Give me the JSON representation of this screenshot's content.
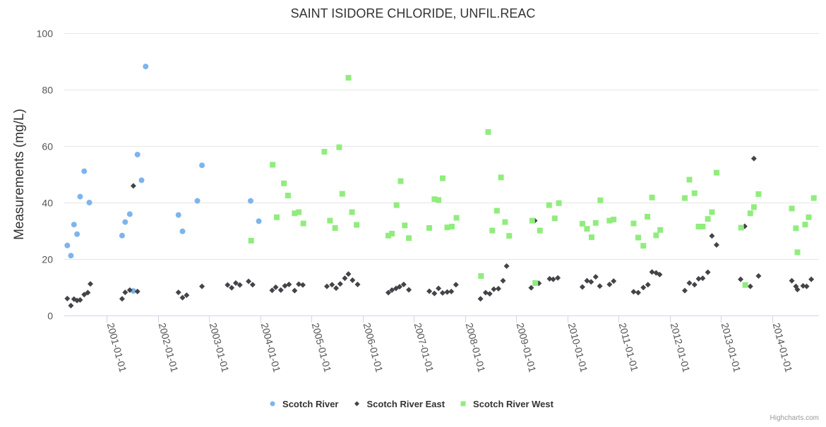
{
  "chart_data": {
    "type": "scatter",
    "title": "SAINT ISIDORE CHLORIDE, UNFIL.REAC",
    "xlabel": "",
    "ylabel": "Measurements (mg/L)",
    "ylim": [
      0,
      100
    ],
    "yticks": [
      0,
      20,
      40,
      60,
      80,
      100
    ],
    "xlim": [
      2000.17,
      2014.91
    ],
    "xticks": [
      {
        "label": "2001-01-01",
        "value": 2001
      },
      {
        "label": "2002-01-01",
        "value": 2002
      },
      {
        "label": "2003-01-01",
        "value": 2003
      },
      {
        "label": "2004-01-01",
        "value": 2004
      },
      {
        "label": "2005-01-01",
        "value": 2005
      },
      {
        "label": "2006-01-01",
        "value": 2006
      },
      {
        "label": "2007-01-01",
        "value": 2007
      },
      {
        "label": "2008-01-01",
        "value": 2008
      },
      {
        "label": "2009-01-01",
        "value": 2009
      },
      {
        "label": "2010-01-01",
        "value": 2010
      },
      {
        "label": "2011-01-01",
        "value": 2011
      },
      {
        "label": "2012-01-01",
        "value": 2012
      },
      {
        "label": "2013-01-01",
        "value": 2013
      },
      {
        "label": "2014-01-01",
        "value": 2014
      }
    ],
    "grid": true,
    "legend_position": "bottom-center",
    "credits": "Highcharts.com",
    "series": [
      {
        "name": "Scotch River",
        "color": "#7cb5ec",
        "marker": "circle",
        "points": [
          [
            2000.23,
            24.8
          ],
          [
            2000.3,
            21.2
          ],
          [
            2000.36,
            32.2
          ],
          [
            2000.42,
            28.8
          ],
          [
            2000.48,
            42.1
          ],
          [
            2000.56,
            51.1
          ],
          [
            2000.66,
            40.0
          ],
          [
            2001.3,
            28.3
          ],
          [
            2001.36,
            33.1
          ],
          [
            2001.45,
            35.9
          ],
          [
            2001.52,
            8.7
          ],
          [
            2001.6,
            57.0
          ],
          [
            2001.68,
            47.9
          ],
          [
            2001.76,
            88.2
          ],
          [
            2002.4,
            35.6
          ],
          [
            2002.48,
            29.8
          ],
          [
            2002.77,
            40.6
          ],
          [
            2002.86,
            53.2
          ],
          [
            2003.81,
            40.6
          ],
          [
            2003.97,
            33.4
          ]
        ]
      },
      {
        "name": "Scotch River East",
        "color": "#434348",
        "marker": "diamond",
        "points": [
          [
            2000.23,
            6.0
          ],
          [
            2000.3,
            3.5
          ],
          [
            2000.36,
            5.8
          ],
          [
            2000.42,
            5.3
          ],
          [
            2000.48,
            5.5
          ],
          [
            2000.56,
            7.4
          ],
          [
            2000.63,
            8.1
          ],
          [
            2000.68,
            11.2
          ],
          [
            2001.3,
            5.9
          ],
          [
            2001.36,
            8.2
          ],
          [
            2001.45,
            9.0
          ],
          [
            2001.52,
            45.9
          ],
          [
            2001.6,
            8.5
          ],
          [
            2002.4,
            8.2
          ],
          [
            2002.48,
            6.3
          ],
          [
            2002.56,
            7.2
          ],
          [
            2002.86,
            10.3
          ],
          [
            2003.36,
            10.8
          ],
          [
            2003.44,
            9.8
          ],
          [
            2003.52,
            11.5
          ],
          [
            2003.6,
            10.8
          ],
          [
            2003.77,
            12.1
          ],
          [
            2003.85,
            10.9
          ],
          [
            2004.23,
            8.9
          ],
          [
            2004.3,
            10.0
          ],
          [
            2004.4,
            9.0
          ],
          [
            2004.48,
            10.5
          ],
          [
            2004.56,
            11.0
          ],
          [
            2004.67,
            8.8
          ],
          [
            2004.75,
            11.1
          ],
          [
            2004.83,
            10.8
          ],
          [
            2005.3,
            10.3
          ],
          [
            2005.4,
            10.9
          ],
          [
            2005.48,
            9.7
          ],
          [
            2005.56,
            11.2
          ],
          [
            2005.65,
            13.2
          ],
          [
            2005.72,
            14.7
          ],
          [
            2005.8,
            12.5
          ],
          [
            2005.9,
            11.0
          ],
          [
            2006.5,
            8.1
          ],
          [
            2006.57,
            9.0
          ],
          [
            2006.65,
            9.6
          ],
          [
            2006.72,
            10.2
          ],
          [
            2006.8,
            11.0
          ],
          [
            2006.9,
            9.1
          ],
          [
            2007.3,
            8.6
          ],
          [
            2007.4,
            7.8
          ],
          [
            2007.48,
            9.6
          ],
          [
            2007.56,
            8.0
          ],
          [
            2007.65,
            8.3
          ],
          [
            2007.73,
            8.5
          ],
          [
            2007.82,
            10.9
          ],
          [
            2008.3,
            5.9
          ],
          [
            2008.4,
            8.1
          ],
          [
            2008.48,
            7.7
          ],
          [
            2008.56,
            9.3
          ],
          [
            2008.65,
            9.5
          ],
          [
            2008.74,
            12.3
          ],
          [
            2008.81,
            17.5
          ],
          [
            2009.29,
            9.8
          ],
          [
            2009.36,
            33.6
          ],
          [
            2009.44,
            11.4
          ],
          [
            2009.65,
            13.0
          ],
          [
            2009.72,
            12.8
          ],
          [
            2009.81,
            13.3
          ],
          [
            2010.29,
            10.1
          ],
          [
            2010.38,
            12.3
          ],
          [
            2010.46,
            11.9
          ],
          [
            2010.55,
            13.7
          ],
          [
            2010.63,
            10.4
          ],
          [
            2010.82,
            11.0
          ],
          [
            2010.9,
            12.2
          ],
          [
            2011.29,
            8.4
          ],
          [
            2011.38,
            8.1
          ],
          [
            2011.48,
            9.9
          ],
          [
            2011.57,
            10.9
          ],
          [
            2011.65,
            15.4
          ],
          [
            2011.73,
            15.1
          ],
          [
            2011.8,
            14.5
          ],
          [
            2012.29,
            8.8
          ],
          [
            2012.38,
            11.5
          ],
          [
            2012.48,
            10.9
          ],
          [
            2012.56,
            13.0
          ],
          [
            2012.64,
            13.2
          ],
          [
            2012.74,
            15.3
          ],
          [
            2012.82,
            28.2
          ],
          [
            2012.91,
            25.0
          ],
          [
            2013.38,
            12.8
          ],
          [
            2013.46,
            31.6
          ],
          [
            2013.57,
            10.3
          ],
          [
            2013.64,
            55.6
          ],
          [
            2013.73,
            14.0
          ],
          [
            2014.38,
            12.3
          ],
          [
            2014.46,
            10.3
          ],
          [
            2014.49,
            9.2
          ],
          [
            2014.6,
            10.5
          ],
          [
            2014.67,
            10.3
          ],
          [
            2014.76,
            12.8
          ]
        ]
      },
      {
        "name": "Scotch River West",
        "color": "#90ed7d",
        "marker": "square",
        "points": [
          [
            2003.82,
            26.5
          ],
          [
            2004.24,
            53.4
          ],
          [
            2004.32,
            34.8
          ],
          [
            2004.46,
            46.8
          ],
          [
            2004.54,
            42.5
          ],
          [
            2004.67,
            36.2
          ],
          [
            2004.75,
            36.6
          ],
          [
            2004.84,
            32.6
          ],
          [
            2005.25,
            58.0
          ],
          [
            2005.36,
            33.6
          ],
          [
            2005.46,
            31.0
          ],
          [
            2005.54,
            59.6
          ],
          [
            2005.6,
            43.1
          ],
          [
            2005.72,
            84.2
          ],
          [
            2005.79,
            36.6
          ],
          [
            2005.88,
            32.1
          ],
          [
            2006.5,
            28.3
          ],
          [
            2006.57,
            29.0
          ],
          [
            2006.66,
            39.1
          ],
          [
            2006.74,
            47.6
          ],
          [
            2006.82,
            31.9
          ],
          [
            2006.9,
            27.4
          ],
          [
            2007.3,
            31.0
          ],
          [
            2007.4,
            41.2
          ],
          [
            2007.48,
            40.9
          ],
          [
            2007.56,
            48.6
          ],
          [
            2007.65,
            31.2
          ],
          [
            2007.74,
            31.5
          ],
          [
            2007.83,
            34.6
          ],
          [
            2008.31,
            14.0
          ],
          [
            2008.45,
            65.0
          ],
          [
            2008.53,
            30.1
          ],
          [
            2008.62,
            37.1
          ],
          [
            2008.7,
            48.9
          ],
          [
            2008.78,
            33.1
          ],
          [
            2008.86,
            28.2
          ],
          [
            2009.31,
            33.6
          ],
          [
            2009.37,
            11.5
          ],
          [
            2009.46,
            30.1
          ],
          [
            2009.64,
            39.1
          ],
          [
            2009.75,
            34.4
          ],
          [
            2009.83,
            39.8
          ],
          [
            2010.29,
            32.5
          ],
          [
            2010.38,
            30.7
          ],
          [
            2010.47,
            27.7
          ],
          [
            2010.55,
            32.8
          ],
          [
            2010.64,
            40.8
          ],
          [
            2010.82,
            33.6
          ],
          [
            2010.9,
            34.0
          ],
          [
            2011.29,
            32.6
          ],
          [
            2011.38,
            27.6
          ],
          [
            2011.48,
            24.7
          ],
          [
            2011.56,
            35.0
          ],
          [
            2011.65,
            41.8
          ],
          [
            2011.73,
            28.4
          ],
          [
            2011.81,
            30.3
          ],
          [
            2012.29,
            41.6
          ],
          [
            2012.38,
            48.1
          ],
          [
            2012.48,
            43.3
          ],
          [
            2012.56,
            31.5
          ],
          [
            2012.64,
            31.5
          ],
          [
            2012.74,
            34.2
          ],
          [
            2012.82,
            36.6
          ],
          [
            2012.91,
            50.6
          ],
          [
            2013.39,
            31.1
          ],
          [
            2013.47,
            10.8
          ],
          [
            2013.57,
            36.2
          ],
          [
            2013.64,
            38.4
          ],
          [
            2013.73,
            43.0
          ],
          [
            2014.38,
            37.9
          ],
          [
            2014.46,
            30.9
          ],
          [
            2014.49,
            22.4
          ],
          [
            2014.64,
            32.2
          ],
          [
            2014.71,
            34.8
          ],
          [
            2014.81,
            41.6
          ]
        ]
      }
    ]
  }
}
